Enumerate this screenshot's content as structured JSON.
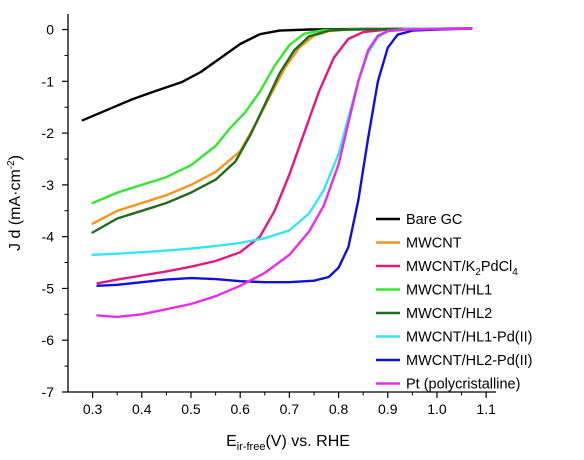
{
  "chart_data": {
    "type": "line",
    "xlabel": {
      "main": "E",
      "sub": "ir-free",
      "rest": "(V) vs. RHE"
    },
    "ylabel": {
      "main": "J d (mA·cm",
      "sup": "-2",
      "rest": ")"
    },
    "xlim": [
      0.25,
      1.12
    ],
    "ylim": [
      -7,
      0.3
    ],
    "xticks": [
      0.3,
      0.4,
      0.5,
      0.6,
      0.7,
      0.8,
      0.9,
      1.0,
      1.1
    ],
    "xtick_labels": [
      "0.3",
      "0.4",
      "0.5",
      "0.6",
      "0.7",
      "0.8",
      "0.9",
      "1.0",
      "1.1"
    ],
    "yticks": [
      0,
      -1,
      -2,
      -3,
      -4,
      -5,
      -6,
      -7
    ],
    "ytick_labels": [
      "0",
      "-1",
      "-2",
      "-3",
      "-4",
      "-5",
      "-6",
      "-7"
    ],
    "grid": false,
    "legend_position": "bottom-right",
    "series": [
      {
        "name": "Bare GC",
        "label_parts": [
          {
            "t": "Bare GC"
          }
        ],
        "color": "#000000",
        "points": [
          [
            0.28,
            -1.75
          ],
          [
            0.33,
            -1.55
          ],
          [
            0.38,
            -1.35
          ],
          [
            0.43,
            -1.18
          ],
          [
            0.48,
            -1.02
          ],
          [
            0.52,
            -0.82
          ],
          [
            0.56,
            -0.55
          ],
          [
            0.6,
            -0.28
          ],
          [
            0.64,
            -0.09
          ],
          [
            0.68,
            -0.02
          ],
          [
            0.74,
            0.0
          ],
          [
            0.85,
            0.01
          ],
          [
            1.07,
            0.02
          ]
        ]
      },
      {
        "name": "MWCNT",
        "label_parts": [
          {
            "t": "MWCNT"
          }
        ],
        "color": "#f7941d",
        "points": [
          [
            0.3,
            -3.75
          ],
          [
            0.35,
            -3.5
          ],
          [
            0.4,
            -3.35
          ],
          [
            0.45,
            -3.2
          ],
          [
            0.5,
            -3.0
          ],
          [
            0.55,
            -2.75
          ],
          [
            0.6,
            -2.35
          ],
          [
            0.63,
            -1.85
          ],
          [
            0.66,
            -1.3
          ],
          [
            0.69,
            -0.75
          ],
          [
            0.72,
            -0.35
          ],
          [
            0.75,
            -0.12
          ],
          [
            0.78,
            -0.03
          ],
          [
            0.82,
            0.0
          ],
          [
            1.07,
            0.02
          ]
        ]
      },
      {
        "name": "MWCNT/K2PdCl4",
        "label_parts": [
          {
            "t": "MWCNT/K"
          },
          {
            "t": "2",
            "sub": true
          },
          {
            "t": "PdCl"
          },
          {
            "t": "4",
            "sub": true
          }
        ],
        "color": "#e5177e",
        "points": [
          [
            0.31,
            -4.9
          ],
          [
            0.35,
            -4.83
          ],
          [
            0.4,
            -4.75
          ],
          [
            0.45,
            -4.67
          ],
          [
            0.5,
            -4.58
          ],
          [
            0.55,
            -4.47
          ],
          [
            0.6,
            -4.3
          ],
          [
            0.64,
            -4.0
          ],
          [
            0.67,
            -3.5
          ],
          [
            0.7,
            -2.8
          ],
          [
            0.73,
            -2.0
          ],
          [
            0.76,
            -1.2
          ],
          [
            0.79,
            -0.55
          ],
          [
            0.82,
            -0.18
          ],
          [
            0.85,
            -0.05
          ],
          [
            0.9,
            0.0
          ],
          [
            1.07,
            0.02
          ]
        ]
      },
      {
        "name": "MWCNT/HL1",
        "label_parts": [
          {
            "t": "MWCNT/HL1"
          }
        ],
        "color": "#33e633",
        "points": [
          [
            0.3,
            -3.35
          ],
          [
            0.35,
            -3.15
          ],
          [
            0.4,
            -3.0
          ],
          [
            0.45,
            -2.85
          ],
          [
            0.5,
            -2.62
          ],
          [
            0.55,
            -2.25
          ],
          [
            0.58,
            -1.9
          ],
          [
            0.61,
            -1.6
          ],
          [
            0.64,
            -1.2
          ],
          [
            0.67,
            -0.7
          ],
          [
            0.7,
            -0.3
          ],
          [
            0.73,
            -0.08
          ],
          [
            0.77,
            -0.01
          ],
          [
            0.82,
            0.0
          ],
          [
            1.07,
            0.02
          ]
        ]
      },
      {
        "name": "MWCNT/HL2",
        "label_parts": [
          {
            "t": "MWCNT/HL2"
          }
        ],
        "color": "#1f6b1f",
        "points": [
          [
            0.3,
            -3.92
          ],
          [
            0.35,
            -3.65
          ],
          [
            0.4,
            -3.5
          ],
          [
            0.45,
            -3.35
          ],
          [
            0.5,
            -3.15
          ],
          [
            0.55,
            -2.9
          ],
          [
            0.59,
            -2.55
          ],
          [
            0.62,
            -2.05
          ],
          [
            0.65,
            -1.45
          ],
          [
            0.68,
            -0.85
          ],
          [
            0.71,
            -0.4
          ],
          [
            0.74,
            -0.13
          ],
          [
            0.78,
            -0.02
          ],
          [
            0.82,
            0.0
          ],
          [
            1.07,
            0.02
          ]
        ]
      },
      {
        "name": "MWCNT/HL1-Pd(II)",
        "label_parts": [
          {
            "t": "MWCNT/HL1-Pd(II)"
          }
        ],
        "color": "#33e6f2",
        "points": [
          [
            0.3,
            -4.35
          ],
          [
            0.35,
            -4.33
          ],
          [
            0.4,
            -4.3
          ],
          [
            0.45,
            -4.27
          ],
          [
            0.5,
            -4.23
          ],
          [
            0.55,
            -4.18
          ],
          [
            0.6,
            -4.12
          ],
          [
            0.65,
            -4.03
          ],
          [
            0.7,
            -3.88
          ],
          [
            0.74,
            -3.55
          ],
          [
            0.77,
            -3.1
          ],
          [
            0.8,
            -2.4
          ],
          [
            0.82,
            -1.7
          ],
          [
            0.84,
            -1.0
          ],
          [
            0.86,
            -0.45
          ],
          [
            0.88,
            -0.15
          ],
          [
            0.9,
            -0.03
          ],
          [
            0.94,
            0.01
          ],
          [
            1.07,
            0.02
          ]
        ]
      },
      {
        "name": "MWCNT/HL2-Pd(II)",
        "label_parts": [
          {
            "t": "MWCNT/HL2-Pd(II)"
          }
        ],
        "color": "#1010dd",
        "points": [
          [
            0.31,
            -4.95
          ],
          [
            0.35,
            -4.93
          ],
          [
            0.4,
            -4.88
          ],
          [
            0.45,
            -4.83
          ],
          [
            0.5,
            -4.8
          ],
          [
            0.55,
            -4.82
          ],
          [
            0.6,
            -4.86
          ],
          [
            0.65,
            -4.88
          ],
          [
            0.7,
            -4.88
          ],
          [
            0.75,
            -4.85
          ],
          [
            0.78,
            -4.78
          ],
          [
            0.8,
            -4.6
          ],
          [
            0.82,
            -4.2
          ],
          [
            0.84,
            -3.3
          ],
          [
            0.86,
            -2.1
          ],
          [
            0.88,
            -1.0
          ],
          [
            0.9,
            -0.35
          ],
          [
            0.92,
            -0.1
          ],
          [
            0.95,
            -0.02
          ],
          [
            1.0,
            0.0
          ],
          [
            1.07,
            0.02
          ]
        ]
      },
      {
        "name": "Pt (polycristalline)",
        "label_parts": [
          {
            "t": "Pt (polycristalline)"
          }
        ],
        "color": "#e62ee6",
        "points": [
          [
            0.31,
            -5.52
          ],
          [
            0.35,
            -5.55
          ],
          [
            0.4,
            -5.5
          ],
          [
            0.45,
            -5.4
          ],
          [
            0.5,
            -5.3
          ],
          [
            0.55,
            -5.15
          ],
          [
            0.6,
            -4.95
          ],
          [
            0.65,
            -4.7
          ],
          [
            0.7,
            -4.35
          ],
          [
            0.74,
            -3.9
          ],
          [
            0.77,
            -3.4
          ],
          [
            0.8,
            -2.6
          ],
          [
            0.82,
            -1.8
          ],
          [
            0.84,
            -1.0
          ],
          [
            0.86,
            -0.4
          ],
          [
            0.88,
            -0.12
          ],
          [
            0.9,
            -0.03
          ],
          [
            0.94,
            0.0
          ],
          [
            1.07,
            0.02
          ]
        ]
      }
    ]
  }
}
